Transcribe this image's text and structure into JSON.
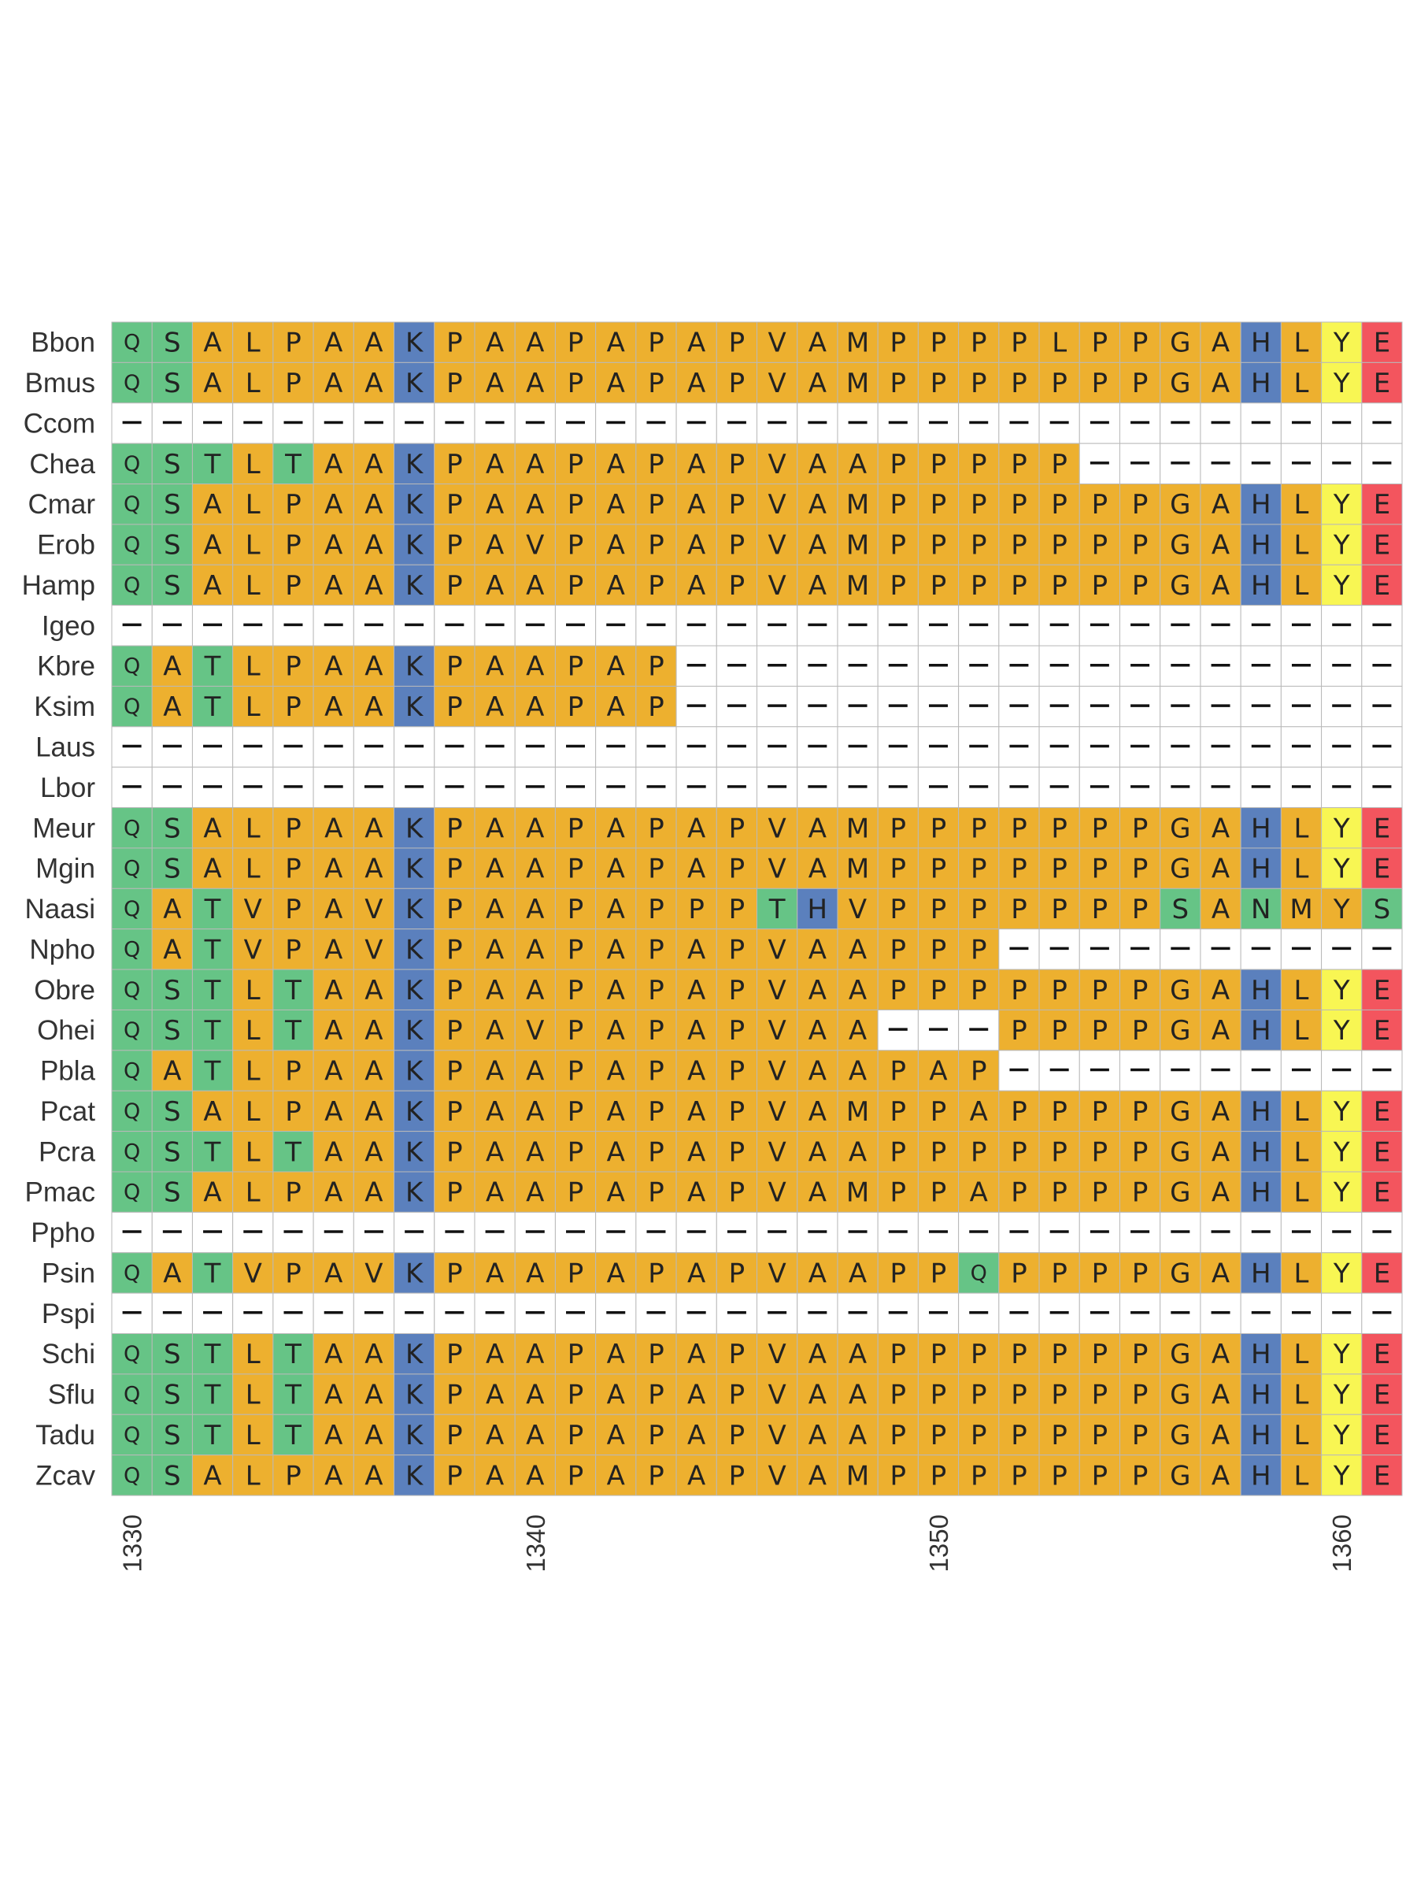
{
  "chart_data": {
    "type": "heatmap",
    "x_ticks": [
      "1330",
      "1340",
      "1350",
      "1360"
    ],
    "x_tick_positions": [
      1330,
      1340,
      1350,
      1360
    ],
    "start_position": 1330,
    "gap_symbol": "—",
    "colors": {
      "green": "#66c486",
      "orange": "#edb02f",
      "blue": "#5b80bd",
      "yellow": "#f8f653",
      "red": "#f3555e",
      "gap": "#ffffff",
      "grid": "#b9b9b9"
    },
    "residue_colors": {
      "Q": "green",
      "S": "green",
      "T": "green",
      "N": "green",
      "A": "orange",
      "L": "orange",
      "P": "orange",
      "V": "orange",
      "M": "orange",
      "G": "orange",
      "K": "blue",
      "H": "blue",
      "Y": "yellow",
      "E": "red"
    },
    "color_exceptions": [
      {
        "row": "Naasi",
        "position": 1360,
        "color": "orange"
      },
      {
        "row": "Naasi",
        "position": 1361,
        "color": "green"
      }
    ],
    "rows": [
      {
        "name": "Bbon",
        "sequence": "QSALPAAKPAAPAPAPVAMPPPPLPPGAHLYE"
      },
      {
        "name": "Bmus",
        "sequence": "QSALPAAKPAAPAPAPVAMPPPPPPPGAHLYE"
      },
      {
        "name": "Ccom",
        "sequence": "--------------------------------"
      },
      {
        "name": "Chea",
        "sequence": "QSTLTAAKPAAPAPAPVAAPPPPP--------"
      },
      {
        "name": "Cmar",
        "sequence": "QSALPAAKPAAPAPAPVAMPPPPPPPGAHLYE"
      },
      {
        "name": "Erob",
        "sequence": "QSALPAAKPAVPAPAPVAMPPPPPPPGAHLYE"
      },
      {
        "name": "Hamp",
        "sequence": "QSALPAAKPAAPAPAPVAMPPPPPPPGAHLYE"
      },
      {
        "name": "Igeo",
        "sequence": "--------------------------------"
      },
      {
        "name": "Kbre",
        "sequence": "QATLPAAKPAAPAP------------------"
      },
      {
        "name": "Ksim",
        "sequence": "QATLPAAKPAAPAP------------------"
      },
      {
        "name": "Laus",
        "sequence": "--------------------------------"
      },
      {
        "name": "Lbor",
        "sequence": "--------------------------------"
      },
      {
        "name": "Meur",
        "sequence": "QSALPAAKPAAPAPAPVAMPPPPPPPGAHLYE"
      },
      {
        "name": "Mgin",
        "sequence": "QSALPAAKPAAPAPAPVAMPPPPPPPGAHLYE"
      },
      {
        "name": "Naasi",
        "sequence": "QATVPAVKPAAPAPPPTHVPPPPPPPSANMYS"
      },
      {
        "name": "Npho",
        "sequence": "QATVPAVKPAAPAPAPVAAPPP----------"
      },
      {
        "name": "Obre",
        "sequence": "QSTLTAAKPAAPAPAPVAAPPPPPPPGAHLYE"
      },
      {
        "name": "Ohei",
        "sequence": "QSTLTAAKPAVPAPAPVAA---PPPPGAHLYE"
      },
      {
        "name": "Pbla",
        "sequence": "QATLPAAKPAAPAPAPVAAPAP----------"
      },
      {
        "name": "Pcat",
        "sequence": "QSALPAAKPAAPAPAPVAMPPAPPPPGAHLYE"
      },
      {
        "name": "Pcra",
        "sequence": "QSTLTAAKPAAPAPAPVAAPPPPPPPGAHLYE"
      },
      {
        "name": "Pmac",
        "sequence": "QSALPAAKPAAPAPAPVAMPPAPPPPGAHLYE"
      },
      {
        "name": "Ppho",
        "sequence": "--------------------------------"
      },
      {
        "name": "Psin",
        "sequence": "QATVPAVKPAAPAPAPVAAPPQPPPPGAHLYE"
      },
      {
        "name": "Pspi",
        "sequence": "--------------------------------"
      },
      {
        "name": "Schi",
        "sequence": "QSTLTAAKPAAPAPAPVAAPPPPPPPGAHLYE"
      },
      {
        "name": "Sflu",
        "sequence": "QSTLTAAKPAAPAPAPVAAPPPPPPPGAHLYE"
      },
      {
        "name": "Tadu",
        "sequence": "QSTLTAAKPAAPAPAPVAAPPPPPPPGAHLYE"
      },
      {
        "name": "Zcav",
        "sequence": "QSALPAAKPAAPAPAPVAMPPPPPPPGAHLYE"
      }
    ]
  }
}
